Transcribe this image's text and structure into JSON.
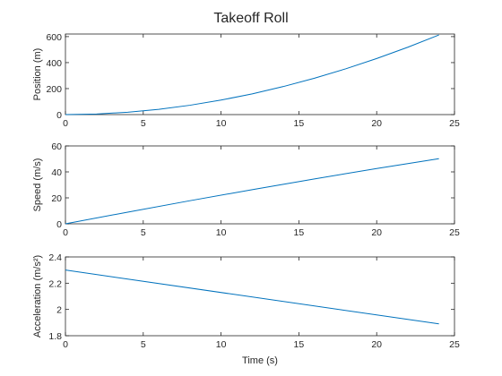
{
  "chart_data": [
    {
      "type": "line",
      "title": "Takeoff Roll",
      "xlabel": "",
      "ylabel": "Position (m)",
      "xlim": [
        0,
        25
      ],
      "ylim": [
        0,
        620
      ],
      "xticks": [
        0,
        5,
        10,
        15,
        20,
        25
      ],
      "yticks": [
        0,
        200,
        400,
        600
      ],
      "grid": false,
      "series": [
        {
          "color": "#0072BD",
          "x": [
            0,
            2,
            4,
            6,
            8,
            10,
            12,
            14,
            16,
            18,
            20,
            22,
            24
          ],
          "y": [
            0,
            4.5,
            18.2,
            40.7,
            71.9,
            111.6,
            159.6,
            215.8,
            280.0,
            351.9,
            431.4,
            518.3,
            612.5
          ]
        }
      ]
    },
    {
      "type": "line",
      "title": "",
      "xlabel": "",
      "ylabel": "Speed (m/s)",
      "xlim": [
        0,
        25
      ],
      "ylim": [
        0,
        60
      ],
      "xticks": [
        0,
        5,
        10,
        15,
        20,
        25
      ],
      "yticks": [
        0,
        20,
        40,
        60
      ],
      "grid": false,
      "series": [
        {
          "color": "#0072BD",
          "x": [
            0,
            4,
            8,
            12,
            16,
            20,
            24
          ],
          "y": [
            0,
            9.0,
            17.8,
            26.3,
            34.6,
            42.6,
            50.2
          ]
        }
      ]
    },
    {
      "type": "line",
      "title": "",
      "xlabel": "Time (s)",
      "ylabel": "Acceleration (m/s²)",
      "xlim": [
        0,
        25
      ],
      "ylim": [
        1.8,
        2.4
      ],
      "xticks": [
        0,
        5,
        10,
        15,
        20,
        25
      ],
      "yticks": [
        1.8,
        2,
        2.2,
        2.4
      ],
      "grid": false,
      "series": [
        {
          "color": "#0072BD",
          "x": [
            0,
            24
          ],
          "y": [
            2.3,
            1.89
          ]
        }
      ]
    }
  ]
}
